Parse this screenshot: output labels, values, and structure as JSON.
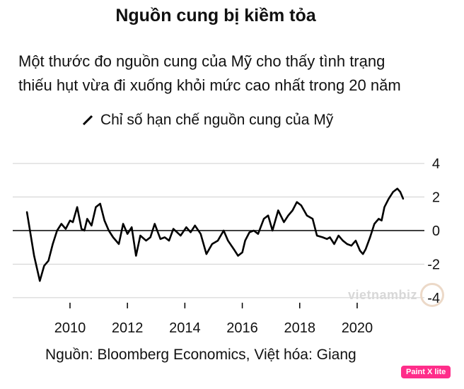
{
  "title": "Nguồn cung bị kiềm tỏa",
  "subtitle_line1": "Một thước đo nguồn cung của Mỹ cho thấy tình trạng",
  "subtitle_line2": "thiếu hụt vừa đi xuống khỏi mức cao nhất trong 20 năm",
  "source": "Nguồn: Bloomberg Economics, Việt hóa: Giang",
  "watermark": "vietnambiz",
  "badge": "Paint X lite",
  "colors": {
    "line": "#000000",
    "grid": "#cfcfcf",
    "zero": "#000000"
  },
  "chart_data": {
    "type": "line",
    "series": [
      {
        "name": "Chỉ số hạn chế nguồn cung của Mỹ",
        "x": [
          2008.5,
          2008.75,
          2008.95,
          2009.1,
          2009.25,
          2009.4,
          2009.55,
          2009.7,
          2009.85,
          2010.0,
          2010.1,
          2010.25,
          2010.4,
          2010.5,
          2010.6,
          2010.75,
          2010.9,
          2011.05,
          2011.2,
          2011.35,
          2011.5,
          2011.7,
          2011.85,
          2012.0,
          2012.15,
          2012.3,
          2012.45,
          2012.65,
          2012.8,
          2012.95,
          2013.15,
          2013.3,
          2013.45,
          2013.6,
          2013.85,
          2014.05,
          2014.2,
          2014.35,
          2014.55,
          2014.75,
          2014.95,
          2015.15,
          2015.35,
          2015.5,
          2015.7,
          2015.85,
          2016.0,
          2016.1,
          2016.25,
          2016.4,
          2016.55,
          2016.75,
          2016.9,
          2017.05,
          2017.25,
          2017.45,
          2017.6,
          2017.75,
          2017.9,
          2018.05,
          2018.25,
          2018.45,
          2018.6,
          2018.8,
          2018.95,
          2019.05,
          2019.2,
          2019.35,
          2019.5,
          2019.65,
          2019.8,
          2019.95,
          2020.1,
          2020.2,
          2020.3,
          2020.45,
          2020.6,
          2020.75,
          2020.85,
          2020.95,
          2021.1,
          2021.25,
          2021.4,
          2021.5,
          2021.6
        ],
        "values": [
          1.1,
          -1.5,
          -3.0,
          -2.1,
          -1.8,
          -0.8,
          0.0,
          0.4,
          0.1,
          0.6,
          0.5,
          1.4,
          0.1,
          0.0,
          0.7,
          0.3,
          1.4,
          1.6,
          0.6,
          0.0,
          -0.4,
          -0.8,
          0.4,
          -0.2,
          0.2,
          -1.5,
          -0.3,
          -0.6,
          -0.4,
          0.4,
          -0.5,
          -0.4,
          -0.6,
          0.1,
          -0.3,
          0.2,
          -0.1,
          0.3,
          -0.2,
          -1.4,
          -0.8,
          -0.6,
          0.0,
          -0.6,
          -1.1,
          -1.5,
          -1.3,
          -0.6,
          -0.1,
          0.0,
          -0.2,
          0.7,
          0.9,
          0.0,
          1.2,
          0.5,
          0.9,
          1.2,
          1.7,
          1.5,
          0.9,
          0.7,
          -0.3,
          -0.4,
          -0.5,
          -0.4,
          -0.8,
          -0.3,
          -0.6,
          -0.8,
          -0.9,
          -0.6,
          -1.2,
          -1.4,
          -1.1,
          -0.4,
          0.4,
          0.7,
          0.6,
          1.4,
          1.9,
          2.3,
          2.5,
          2.3,
          1.9
        ],
        "color": "#000000"
      }
    ],
    "xlim": [
      2008.4,
      2021.75
    ],
    "ylim": [
      -4.3,
      4.3
    ],
    "xticks": [
      2010,
      2012,
      2014,
      2016,
      2018,
      2020
    ],
    "xtick_labels": [
      "2010",
      "2012",
      "2014",
      "2016",
      "2018",
      "2020"
    ],
    "yticks": [
      4,
      2,
      0,
      -2,
      -4
    ],
    "ytick_labels": [
      "4",
      "2",
      "0",
      "-2",
      "-4"
    ],
    "grid": "horizontal",
    "legend": "top-left",
    "xlabel": "",
    "ylabel": ""
  }
}
